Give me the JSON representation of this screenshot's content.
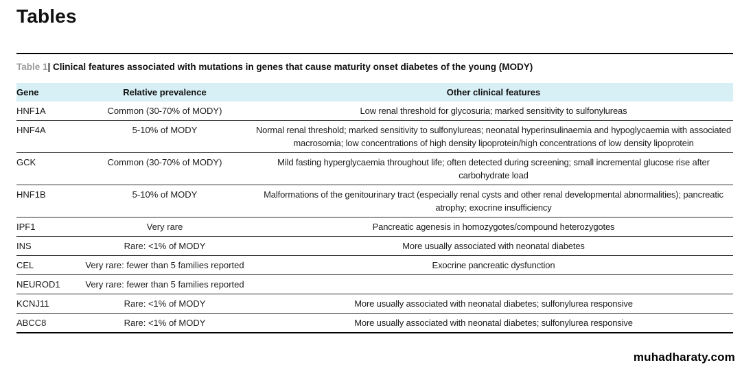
{
  "page": {
    "title": "Tables"
  },
  "table": {
    "caption_label": "Table 1",
    "caption_text": "| Clinical features associated with mutations in genes that cause maturity onset diabetes of the young (MODY)",
    "columns": {
      "gene": "Gene",
      "prevalence": "Relative prevalence",
      "features": "Other clinical features"
    },
    "header_bg": "#d7f0f6",
    "rows": [
      {
        "gene": "HNF1A",
        "prevalence": "Common (30-70% of MODY)",
        "features": "Low renal threshold for glycosuria; marked sensitivity to sulfonylureas"
      },
      {
        "gene": "HNF4A",
        "prevalence": "5-10% of MODY",
        "features": "Normal renal threshold; marked sensitivity to sulfonylureas; neonatal hyperinsulinaemia and hypoglycaemia with associated macrosomia; low concentrations of high density lipoprotein/high concentrations of low density lipoprotein"
      },
      {
        "gene": "GCK",
        "prevalence": "Common (30-70% of MODY)",
        "features": "Mild fasting hyperglycaemia throughout life; often detected during screening; small incremental glucose rise after carbohydrate load"
      },
      {
        "gene": "HNF1B",
        "prevalence": "5-10% of MODY",
        "features": "Malformations of the genitourinary tract (especially renal cysts and other renal developmental abnormalities); pancreatic atrophy; exocrine insufficiency"
      },
      {
        "gene": "IPF1",
        "prevalence": "Very rare",
        "features": "Pancreatic agenesis in homozygotes/compound heterozygotes"
      },
      {
        "gene": "INS",
        "prevalence": "Rare: <1% of MODY",
        "features": "More usually associated with neonatal diabetes"
      },
      {
        "gene": "CEL",
        "prevalence": "Very rare: fewer than 5 families reported",
        "features": "Exocrine pancreatic dysfunction"
      },
      {
        "gene": "NEUROD1",
        "prevalence": "Very rare: fewer than 5 families reported",
        "features": ""
      },
      {
        "gene": "KCNJ11",
        "prevalence": "Rare: <1% of MODY",
        "features": "More usually associated with neonatal diabetes; sulfonylurea responsive"
      },
      {
        "gene": "ABCC8",
        "prevalence": "Rare: <1% of MODY",
        "features": "More usually associated with neonatal diabetes; sulfonylurea responsive"
      }
    ]
  },
  "footer": {
    "watermark": "muhadharaty.com"
  }
}
